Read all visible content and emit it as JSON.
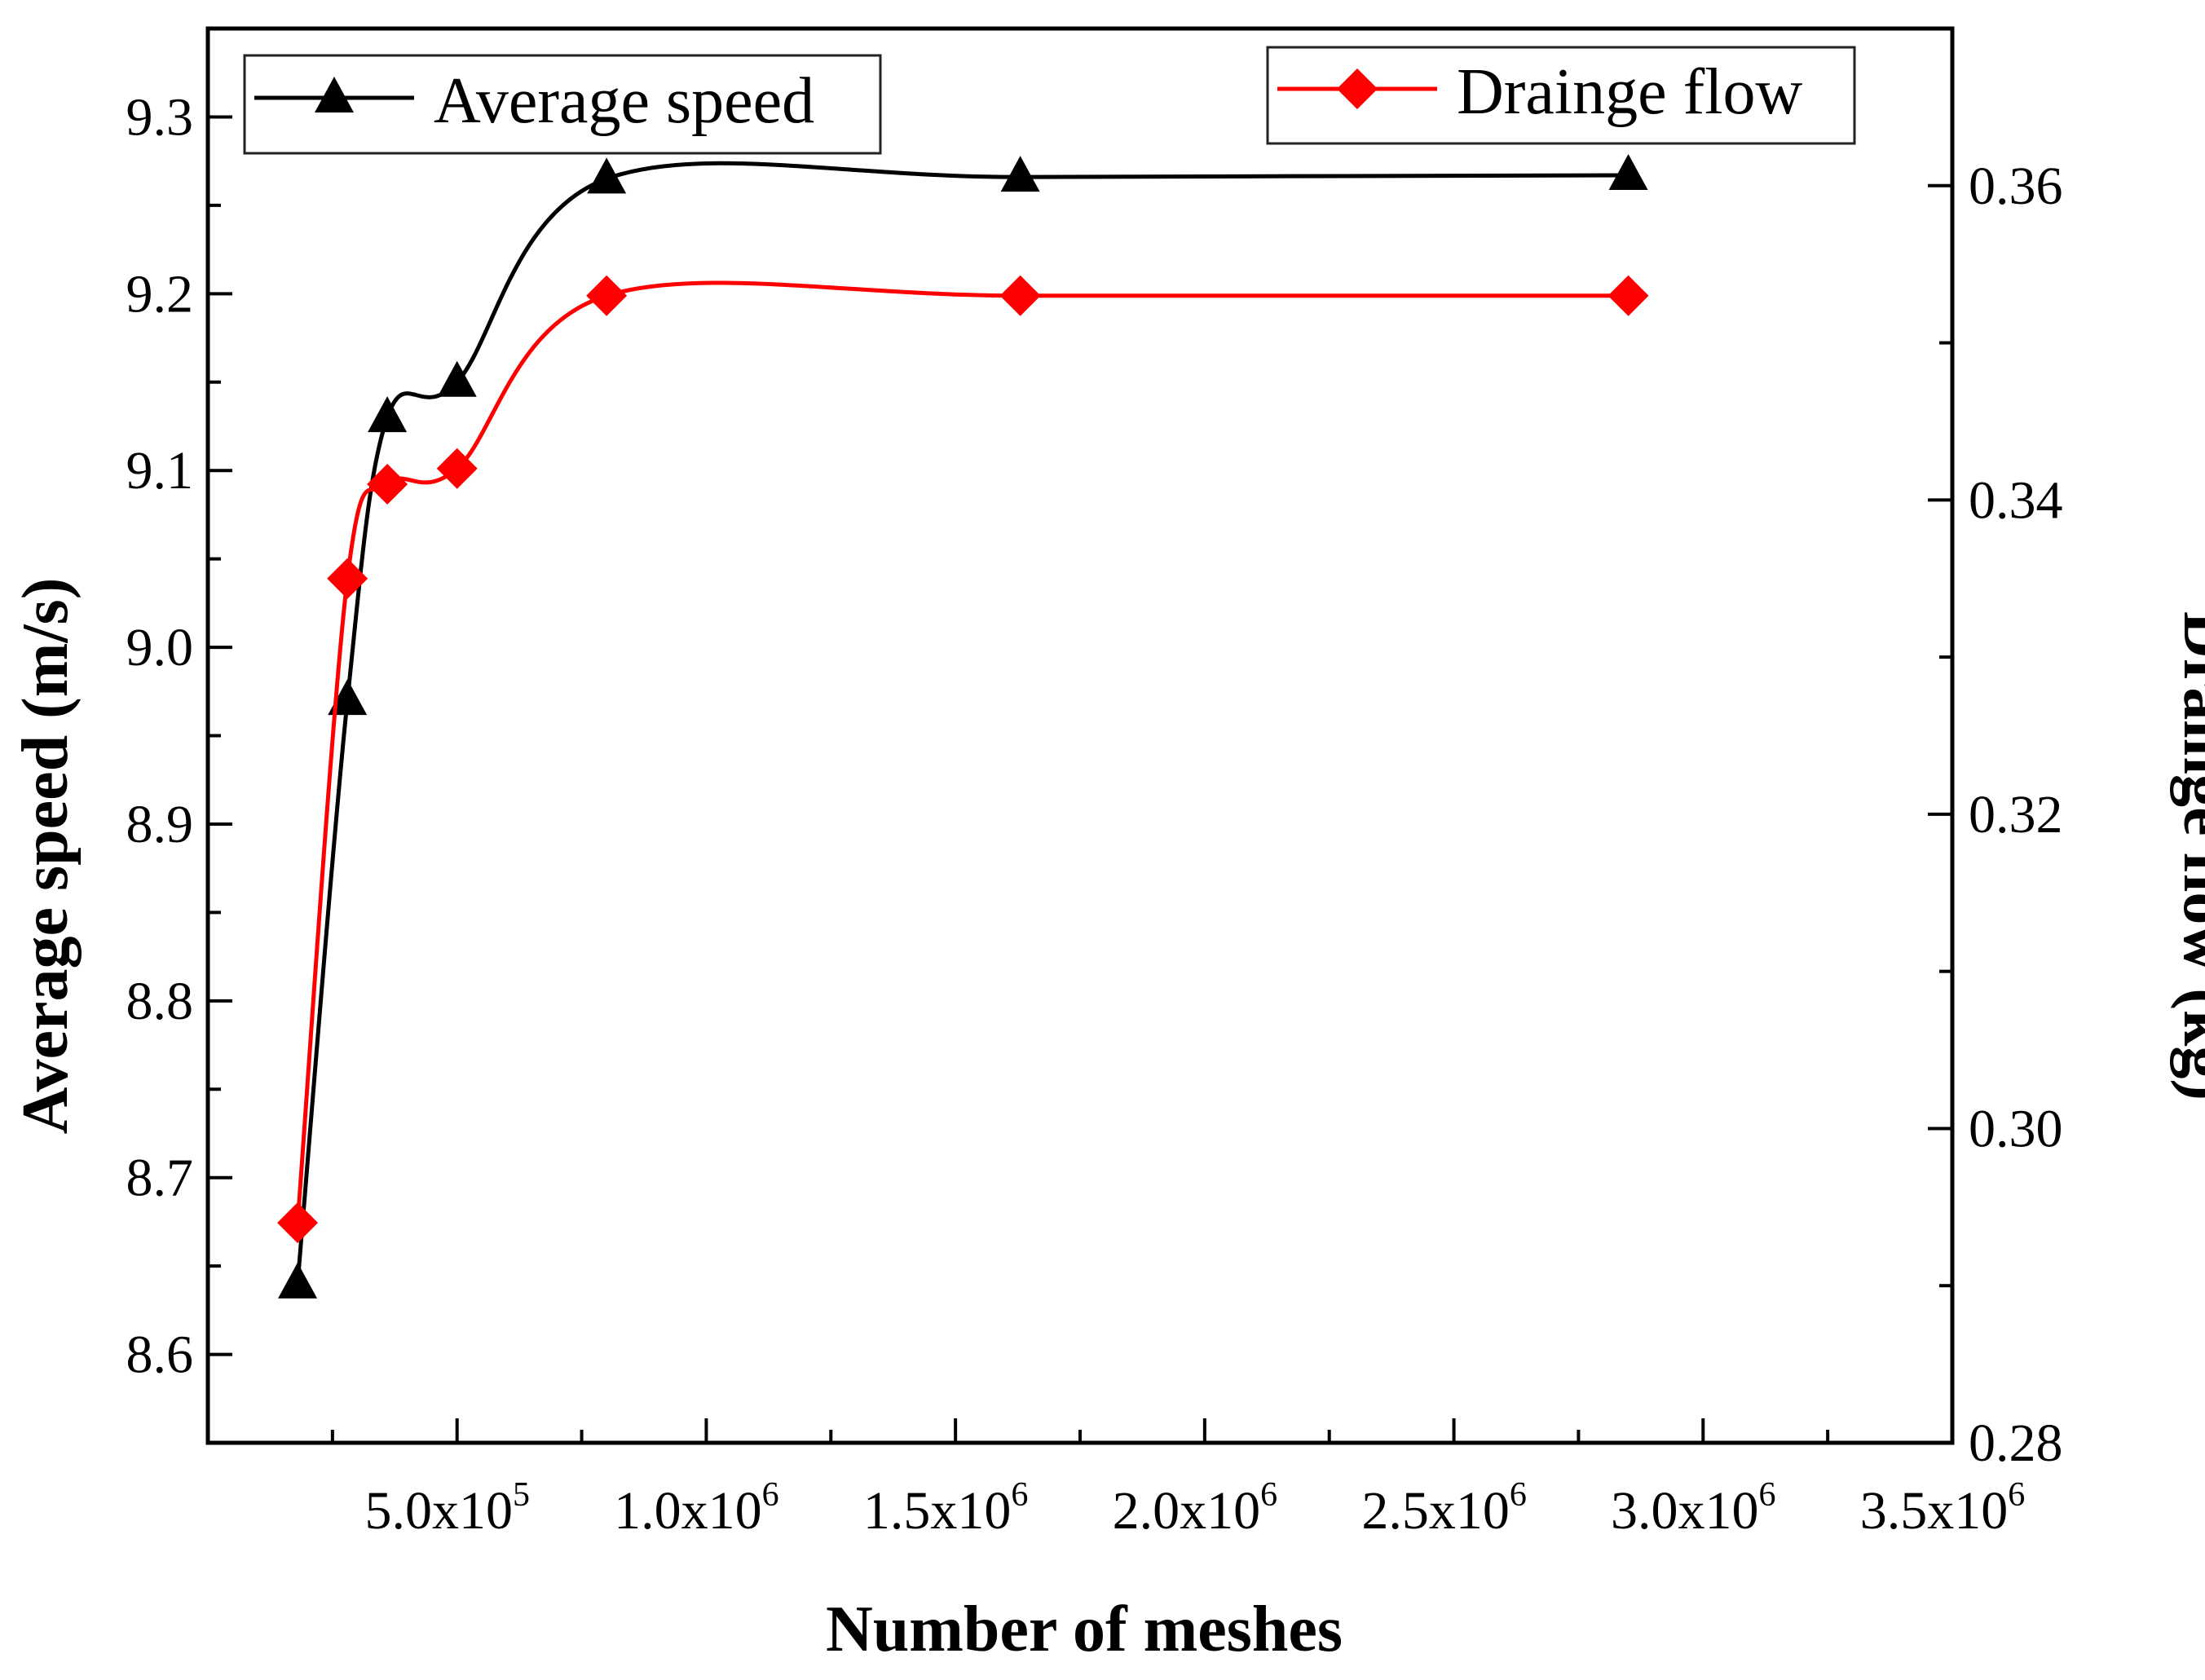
{
  "chart_data": {
    "type": "line",
    "title": "",
    "xlabel": "Number of meshes",
    "ylabel": "Average speed (m/s)",
    "y2label": "Drainge flow (kg)",
    "xlim": [
      0,
      3500000
    ],
    "ylim": [
      8.55,
      9.35
    ],
    "y2lim": [
      0.28,
      0.37
    ],
    "x_ticks": [
      {
        "value": 500000,
        "mantissa": "5.0x10",
        "exp": "5"
      },
      {
        "value": 1000000,
        "mantissa": "1.0x10",
        "exp": "6"
      },
      {
        "value": 1500000,
        "mantissa": "1.5x10",
        "exp": "6"
      },
      {
        "value": 2000000,
        "mantissa": "2.0x10",
        "exp": "6"
      },
      {
        "value": 2500000,
        "mantissa": "2.5x10",
        "exp": "6"
      },
      {
        "value": 3000000,
        "mantissa": "3.0x10",
        "exp": "6"
      },
      {
        "value": 3500000,
        "mantissa": "3.5x10",
        "exp": "6"
      }
    ],
    "y_ticks": [
      "8.6",
      "8.7",
      "8.8",
      "8.9",
      "9.0",
      "9.1",
      "9.2",
      "9.3"
    ],
    "y2_ticks": [
      "0.28",
      "0.30",
      "0.32",
      "0.34",
      "0.36"
    ],
    "legend_position": "top",
    "series": [
      {
        "name": "Average speed",
        "axis": "left",
        "color": "#000000",
        "marker": "triangle",
        "x": [
          180000,
          280000,
          360000,
          500000,
          800000,
          1630000,
          2850000
        ],
        "values": [
          8.64,
          8.97,
          9.13,
          9.15,
          9.265,
          9.266,
          9.267
        ]
      },
      {
        "name": "Drainge flow",
        "axis": "right",
        "color": "#ff0000",
        "marker": "diamond",
        "x": [
          180000,
          280000,
          360000,
          500000,
          800000,
          1630000,
          2850000
        ],
        "values": [
          0.294,
          0.335,
          0.341,
          0.342,
          0.353,
          0.353,
          0.353
        ]
      }
    ]
  }
}
